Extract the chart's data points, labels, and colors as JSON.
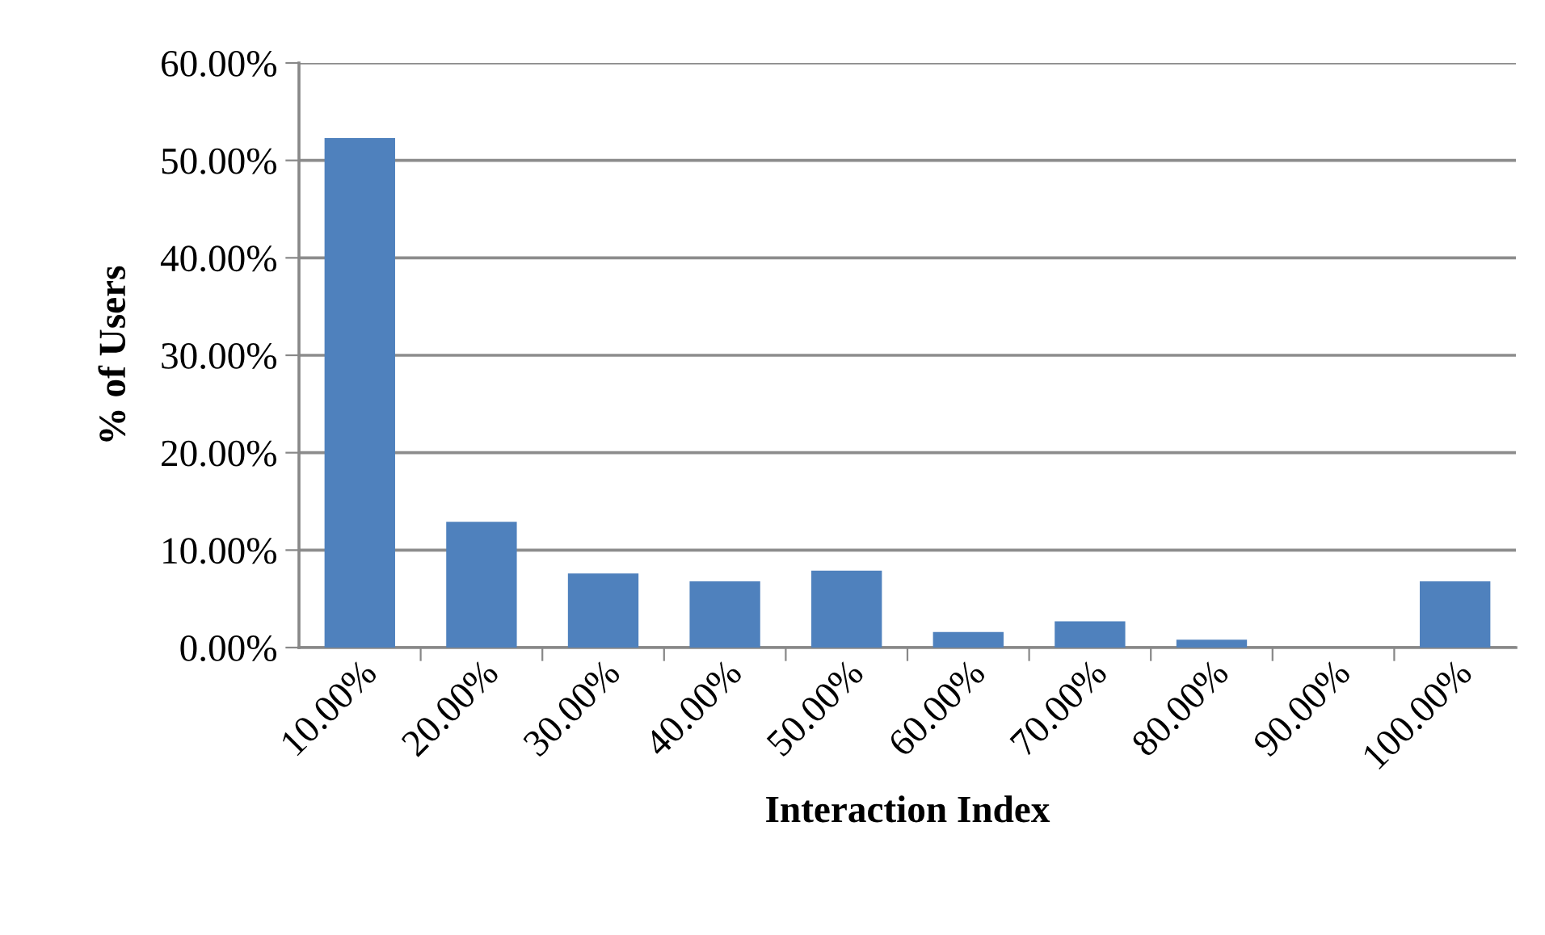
{
  "chart_data": {
    "type": "bar",
    "xlabel": "Interaction Index",
    "ylabel": "% of Users",
    "categories": [
      "10.00%",
      "20.00%",
      "30.00%",
      "40.00%",
      "50.00%",
      "60.00%",
      "70.00%",
      "80.00%",
      "90.00%",
      "100.00%"
    ],
    "values": [
      52.3,
      12.9,
      7.6,
      6.8,
      7.9,
      1.6,
      2.7,
      0.8,
      0,
      6.8
    ],
    "color": "#4f81bd",
    "ylim": [
      0,
      60
    ],
    "yticks": [
      {
        "value": 0,
        "label": "0.00%"
      },
      {
        "value": 10,
        "label": "10.00%"
      },
      {
        "value": 20,
        "label": "20.00%"
      },
      {
        "value": 30,
        "label": "30.00%"
      },
      {
        "value": 40,
        "label": "40.00%"
      },
      {
        "value": 50,
        "label": "50.00%"
      },
      {
        "value": 60,
        "label": "60.00%"
      }
    ],
    "grid": "y",
    "legend": false
  }
}
